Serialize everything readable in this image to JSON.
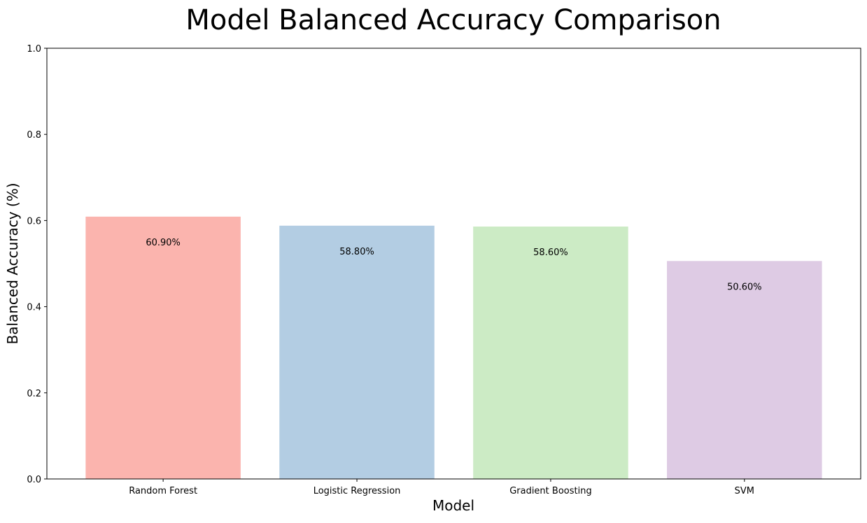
{
  "chart_data": {
    "type": "bar",
    "title": "Model Balanced Accuracy Comparison",
    "xlabel": "Model",
    "ylabel": "Balanced Accuracy (%)",
    "categories": [
      "Random Forest",
      "Logistic Regression",
      "Gradient Boosting",
      "SVM"
    ],
    "values": [
      0.609,
      0.588,
      0.586,
      0.506
    ],
    "data_labels": [
      "60.90%",
      "58.80%",
      "58.60%",
      "50.60%"
    ],
    "colors": [
      "#fbb4ae",
      "#b3cde3",
      "#ccebc5",
      "#decbe4"
    ],
    "ylim": [
      0,
      1.0
    ],
    "yticks": [
      0.0,
      0.2,
      0.4,
      0.6,
      0.8,
      1.0
    ],
    "ytick_labels": [
      "0.0",
      "0.2",
      "0.4",
      "0.6",
      "0.8",
      "1.0"
    ],
    "grid": false,
    "legend": "none"
  }
}
